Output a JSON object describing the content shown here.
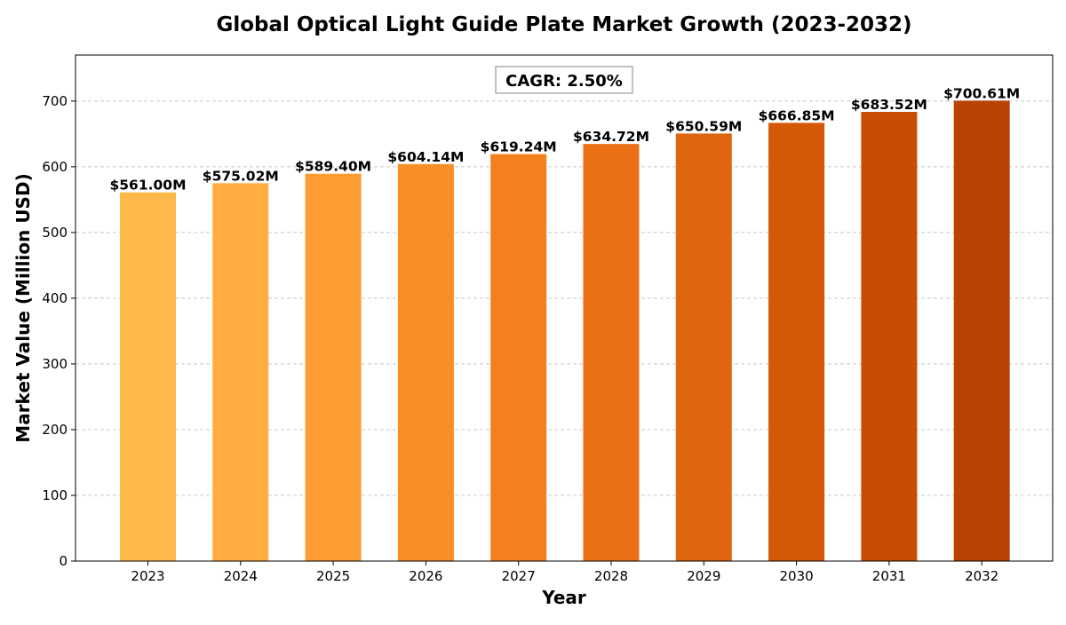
{
  "chart_data": {
    "type": "bar",
    "title": "Global Optical Light Guide Plate Market Growth (2023-2032)",
    "xlabel": "Year",
    "ylabel": "Market Value (Million USD)",
    "categories": [
      "2023",
      "2024",
      "2025",
      "2026",
      "2027",
      "2028",
      "2029",
      "2030",
      "2031",
      "2032"
    ],
    "values": [
      561.0,
      575.02,
      589.4,
      604.14,
      619.24,
      634.72,
      650.59,
      666.85,
      683.52,
      700.61
    ],
    "data_labels": [
      "$561.00M",
      "$575.02M",
      "$589.40M",
      "$604.14M",
      "$619.24M",
      "$634.72M",
      "$650.59M",
      "$666.85M",
      "$683.52M",
      "$700.61M"
    ],
    "ylim": [
      0,
      770
    ],
    "yticks": [
      0,
      100,
      200,
      300,
      400,
      500,
      600,
      700
    ],
    "grid": "y-dashed",
    "annotation": "CAGR: 2.50%",
    "bar_colors": [
      "#FFB84A",
      "#FFAD40",
      "#FD9D31",
      "#F88F26",
      "#F3801F",
      "#EB6F15",
      "#E06510",
      "#D55708",
      "#C94C02",
      "#B84303"
    ]
  }
}
